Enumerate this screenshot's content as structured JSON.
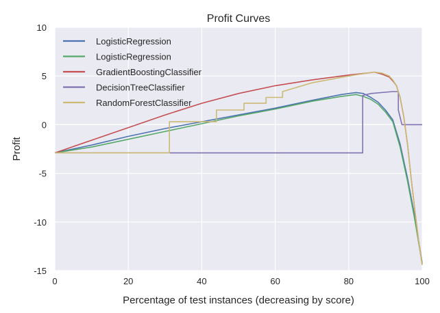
{
  "chart_data": {
    "type": "line",
    "title": "Profit Curves",
    "xlabel": "Percentage of test instances (decreasing by score)",
    "ylabel": "Profit",
    "xlim": [
      0,
      100
    ],
    "ylim": [
      -15,
      10
    ],
    "xticks": [
      "0",
      "20",
      "40",
      "60",
      "80",
      "100"
    ],
    "yticks": [
      "10",
      "5",
      "0",
      "-5",
      "-10",
      "-15"
    ],
    "grid": true,
    "legend_position": "top-left",
    "background_color": "#eaeaf2",
    "grid_color": "#ffffff",
    "series": [
      {
        "name": "LogisticRegression",
        "color": "#4c72b0",
        "x": [
          0,
          10,
          20,
          30,
          40,
          50,
          60,
          70,
          78,
          82,
          84,
          86,
          88,
          90,
          92,
          94,
          96,
          98,
          100
        ],
        "y": [
          -2.9,
          -2.1,
          -1.2,
          -0.4,
          0.3,
          1.0,
          1.7,
          2.5,
          3.1,
          3.3,
          3.2,
          2.8,
          2.3,
          1.5,
          0.5,
          -2.0,
          -5.5,
          -9.5,
          -14.2
        ]
      },
      {
        "name": "LogisticRegression",
        "color": "#55a868",
        "x": [
          0,
          10,
          20,
          30,
          40,
          50,
          60,
          70,
          78,
          82,
          84,
          86,
          88,
          90,
          92,
          94,
          96,
          98,
          100
        ],
        "y": [
          -2.9,
          -2.3,
          -1.5,
          -0.7,
          0.1,
          0.9,
          1.6,
          2.4,
          2.9,
          3.1,
          2.9,
          2.6,
          2.1,
          1.3,
          0.3,
          -2.3,
          -5.8,
          -9.8,
          -14.3
        ]
      },
      {
        "name": "GradientBoostingClassifier",
        "color": "#c44e52",
        "x": [
          0,
          10,
          20,
          30,
          40,
          50,
          60,
          70,
          80,
          85,
          87,
          89,
          91,
          92,
          93,
          94,
          95,
          96,
          97,
          98,
          99,
          100
        ],
        "y": [
          -2.9,
          -1.6,
          -0.3,
          1.0,
          2.2,
          3.2,
          4.0,
          4.6,
          5.1,
          5.3,
          5.4,
          5.2,
          4.9,
          4.5,
          4.0,
          2.8,
          0.8,
          -2.0,
          -5.5,
          -8.8,
          -11.8,
          -14.4
        ]
      },
      {
        "name": "DecisionTreeClassifier",
        "color": "#8172b2",
        "x": [
          0,
          83.8,
          83.8,
          86,
          92,
          93.5,
          93.5,
          94.5,
          94.5,
          100
        ],
        "y": [
          -2.9,
          -2.9,
          3.0,
          3.2,
          3.4,
          3.4,
          1.5,
          0.0,
          0.0,
          0.0
        ]
      },
      {
        "name": "RandomForestClassifier",
        "color": "#ccb974",
        "x": [
          0,
          31.2,
          31.2,
          44,
          44,
          51.5,
          51.5,
          57.5,
          57.5,
          62,
          62,
          70,
          80,
          85,
          87,
          89,
          91,
          92,
          93,
          94,
          95,
          96,
          97,
          98,
          99,
          100
        ],
        "y": [
          -2.9,
          -2.9,
          0.3,
          0.3,
          1.5,
          1.5,
          2.2,
          2.2,
          2.8,
          2.8,
          3.4,
          4.3,
          5.0,
          5.3,
          5.4,
          5.3,
          5.0,
          4.6,
          4.0,
          2.8,
          0.8,
          -2.0,
          -5.5,
          -8.8,
          -11.8,
          -14.4
        ]
      }
    ]
  }
}
